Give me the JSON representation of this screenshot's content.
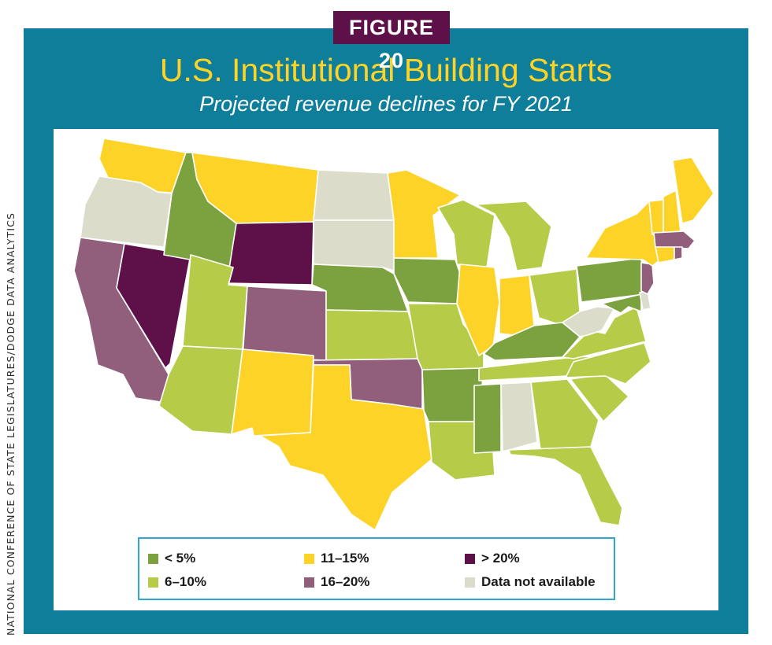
{
  "figure_label": "FIGURE 20",
  "title": "U.S. Institutional Building Starts",
  "subtitle": "Projected revenue declines for FY 2021",
  "credit": "NATIONAL CONFERENCE OF STATE LEGISLATURES/DODGE DATA ANALYTICS",
  "colors": {
    "frame": "#0e7e9b",
    "badge": "#5e1048",
    "title": "#fdd327",
    "legend_border": "#2ea8d0"
  },
  "legend": {
    "items": [
      {
        "key": "lt5",
        "label": "< 5%",
        "color": "#7ba23f"
      },
      {
        "key": "6to10",
        "label": "6–10%",
        "color": "#b6cc48"
      },
      {
        "key": "11to15",
        "label": "11–15%",
        "color": "#fdd327"
      },
      {
        "key": "16to20",
        "label": "16–20%",
        "color": "#915e7c"
      },
      {
        "key": "gt20",
        "label": "> 20%",
        "color": "#5e1048"
      },
      {
        "key": "na",
        "label": "Data not available",
        "color": "#dcdccb"
      }
    ]
  },
  "states": {
    "WA": "11to15",
    "OR": "na",
    "CA": "16to20",
    "NV": "gt20",
    "ID": "lt5",
    "MT": "11to15",
    "WY": "gt20",
    "UT": "6to10",
    "AZ": "6to10",
    "CO": "16to20",
    "NM": "11to15",
    "ND": "na",
    "SD": "na",
    "NE": "lt5",
    "KS": "6to10",
    "OK": "16to20",
    "TX": "11to15",
    "MN": "11to15",
    "IA": "lt5",
    "MO": "6to10",
    "AR": "lt5",
    "LA": "6to10",
    "WI": "6to10",
    "IL": "11to15",
    "MI": "6to10",
    "IN": "11to15",
    "OH": "6to10",
    "KY": "lt5",
    "TN": "6to10",
    "MS": "lt5",
    "AL": "na",
    "GA": "6to10",
    "FL": "6to10",
    "SC": "6to10",
    "NC": "6to10",
    "VA": "6to10",
    "WV": "na",
    "PA": "lt5",
    "NY": "11to15",
    "VT": "11to15",
    "NH": "11to15",
    "ME": "11to15",
    "MA": "16to20",
    "CT": "11to15",
    "RI": "16to20",
    "NJ": "16to20",
    "DE": "na",
    "MD": "lt5"
  }
}
